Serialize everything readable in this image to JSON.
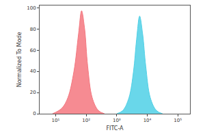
{
  "chart_data": {
    "type": "area",
    "x_label": "FITC-A",
    "y_label": "Normalized To Mode",
    "log": "x",
    "grid": false,
    "xlim": [
      3,
      250000
    ],
    "xticks": [
      {
        "value": 10,
        "label": "10¹"
      },
      {
        "value": 100,
        "label": "10²"
      },
      {
        "value": 1000,
        "label": "10³"
      },
      {
        "value": 10000,
        "label": "10⁴"
      },
      {
        "value": 100000,
        "label": "10⁵"
      }
    ],
    "ylim": [
      0,
      102
    ],
    "yticks": [
      0,
      20,
      40,
      60,
      80,
      100
    ],
    "series": [
      {
        "color": "#f4777f",
        "x": [
          7.9,
          15.8,
          25.1,
          39.8,
          56.2,
          70.8,
          89.1,
          112,
          158,
          251,
          398
        ],
        "values": [
          0,
          5,
          15,
          40,
          75,
          97,
          80,
          45,
          15,
          3,
          0
        ]
      },
      {
        "color": "#4fd0e6",
        "x": [
          1000,
          1585,
          2512,
          3548,
          4467,
          5623,
          7079,
          8913,
          12589,
          19953,
          31623
        ],
        "values": [
          0,
          3,
          15,
          40,
          70,
          92,
          75,
          45,
          15,
          3,
          0
        ]
      }
    ]
  }
}
